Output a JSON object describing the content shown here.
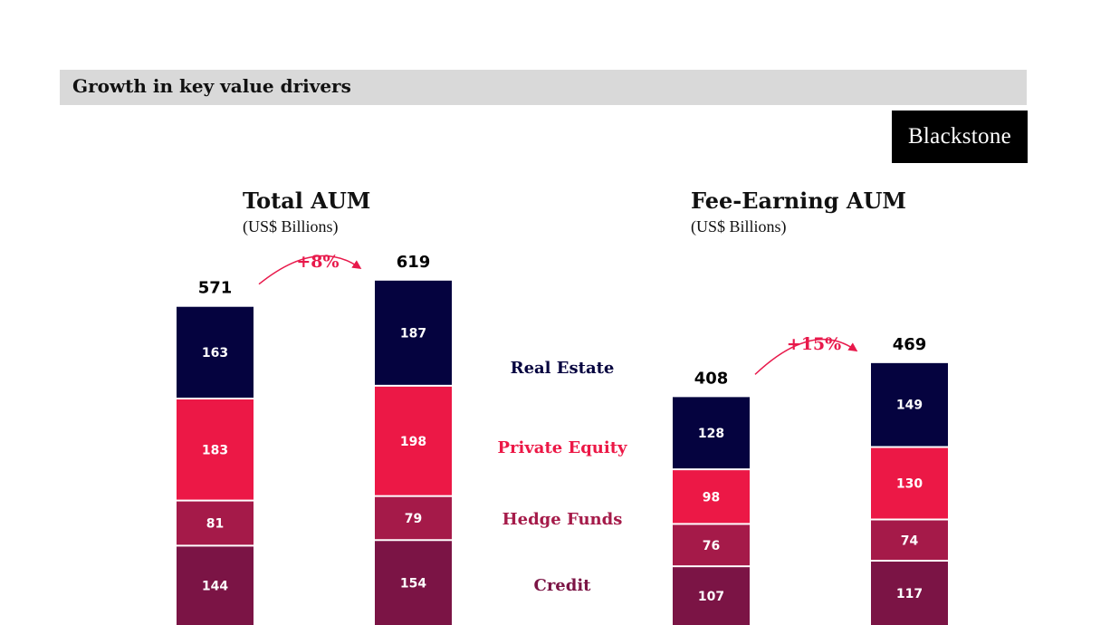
{
  "header": {
    "title": "Growth in key value drivers"
  },
  "logo": {
    "text": "Blackstone"
  },
  "colors": {
    "Real Estate": "#05033f",
    "Private Equity": "#ec1846",
    "Hedge Funds": "#a51a49",
    "Credit": "#7b1445",
    "growth": "#e8194b"
  },
  "legend": [
    "Real Estate",
    "Private Equity",
    "Hedge Funds",
    "Credit"
  ],
  "chart_data": [
    {
      "type": "bar",
      "stacked": true,
      "title": "Total AUM",
      "subtitle": "(US$ Billions)",
      "series": [
        {
          "name": "Real Estate",
          "values": [
            163,
            187
          ]
        },
        {
          "name": "Private Equity",
          "values": [
            183,
            198
          ]
        },
        {
          "name": "Hedge Funds",
          "values": [
            81,
            79
          ]
        },
        {
          "name": "Credit",
          "values": [
            144,
            154
          ]
        }
      ],
      "totals": [
        571,
        619
      ],
      "growth": "+8%"
    },
    {
      "type": "bar",
      "stacked": true,
      "title": "Fee-Earning AUM",
      "subtitle": "(US$ Billions)",
      "series": [
        {
          "name": "Real Estate",
          "values": [
            128,
            149
          ]
        },
        {
          "name": "Private Equity",
          "values": [
            98,
            130
          ]
        },
        {
          "name": "Hedge Funds",
          "values": [
            76,
            74
          ]
        },
        {
          "name": "Credit",
          "values": [
            107,
            117
          ]
        }
      ],
      "totals": [
        408,
        469
      ],
      "growth": "+15%"
    }
  ]
}
